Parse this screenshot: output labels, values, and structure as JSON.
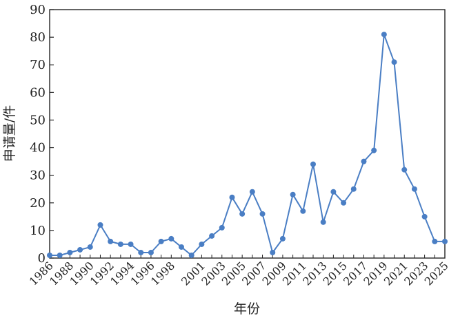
{
  "chart_data": {
    "type": "line",
    "title": "",
    "xlabel": "年份",
    "ylabel": "申请量/件",
    "ylim": [
      0,
      90
    ],
    "yticks": [
      0,
      10,
      20,
      30,
      40,
      50,
      60,
      70,
      80,
      90
    ],
    "xlim": [
      1986,
      2025
    ],
    "xticks": [
      "1986",
      "1988",
      "1990",
      "1992",
      "1994",
      "1996",
      "1998",
      "2001",
      "2003",
      "2005",
      "2007",
      "2009",
      "2011",
      "2013",
      "2015",
      "2017",
      "2019",
      "2021",
      "2023",
      "2025"
    ],
    "x": [
      1986,
      1987,
      1988,
      1989,
      1990,
      1991,
      1992,
      1993,
      1994,
      1995,
      1996,
      1997,
      1998,
      1999,
      2000,
      2001,
      2002,
      2003,
      2004,
      2005,
      2006,
      2007,
      2008,
      2009,
      2010,
      2011,
      2012,
      2013,
      2014,
      2015,
      2016,
      2017,
      2018,
      2019,
      2020,
      2021,
      2022,
      2023,
      2024,
      2025
    ],
    "series": [
      {
        "values": [
          1,
          1,
          2,
          3,
          4,
          12,
          6,
          5,
          5,
          2,
          2,
          6,
          7,
          4,
          1,
          5,
          8,
          11,
          22,
          16,
          24,
          16,
          2,
          7,
          23,
          17,
          34,
          13,
          24,
          20,
          25,
          35,
          39,
          81,
          71,
          32,
          25,
          15,
          6,
          6
        ]
      }
    ],
    "grid": false,
    "legend": "none",
    "line_color": "#4a7ec4",
    "marker_color": "#4a7ec4",
    "axis_color": "#222222"
  }
}
